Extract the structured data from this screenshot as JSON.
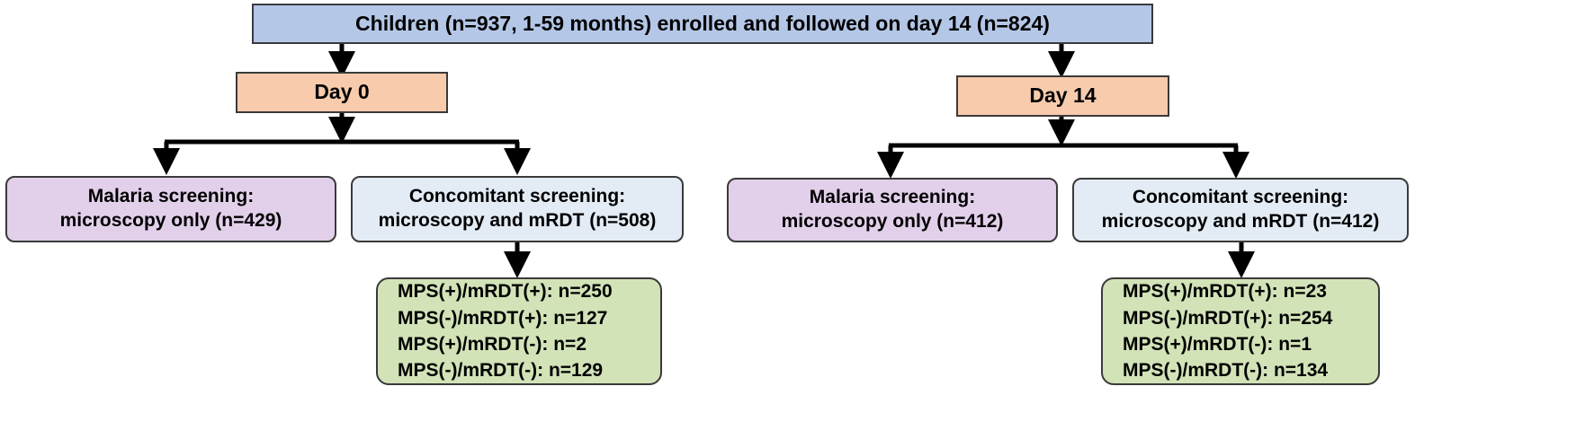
{
  "top": {
    "text": "Children (n=937, 1-59 months) enrolled and followed on day 14 (n=824)"
  },
  "day0": {
    "label": "Day 0",
    "malaria": {
      "line1": "Malaria screening:",
      "line2": "microscopy  only (n=429)"
    },
    "concomitant": {
      "line1": "Concomitant screening:",
      "line2": "microscopy  and mRDT (n=508)"
    },
    "results": [
      "MPS(+)/mRDT(+): n=250",
      "MPS(-)/mRDT(+): n=127",
      "MPS(+)/mRDT(-): n=2",
      "MPS(-)/mRDT(-):  n=129"
    ]
  },
  "day14": {
    "label": "Day 14",
    "malaria": {
      "line1": "Malaria screening:",
      "line2": "microscopy  only (n=412)"
    },
    "concomitant": {
      "line1": "Concomitant screening:",
      "line2": "microscopy  and mRDT (n=412)"
    },
    "results": [
      "MPS(+)/mRDT(+): n=23",
      "MPS(-)/mRDT(+): n=254",
      "MPS(+)/mRDT(-): n=1",
      "MPS(-)/mRDT(-):  n=134"
    ]
  },
  "colors": {
    "top_box": "#b4c7e7",
    "day_box": "#f8cbad",
    "malaria_box": "#e2d0ea",
    "concomitant_box": "#e3ebf5",
    "results_box": "#d3e3b8"
  }
}
